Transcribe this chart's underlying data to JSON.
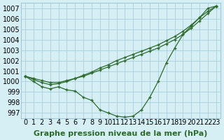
{
  "xlabel": "Graphe pression niveau de la mer (hPa)",
  "x_ticks": [
    0,
    1,
    2,
    3,
    4,
    5,
    6,
    7,
    8,
    9,
    10,
    11,
    12,
    13,
    14,
    15,
    16,
    17,
    18,
    19,
    20,
    21,
    22,
    23
  ],
  "ylim": [
    996.5,
    1007.5
  ],
  "yticks": [
    997,
    998,
    999,
    1000,
    1001,
    1002,
    1003,
    1004,
    1005,
    1006,
    1007
  ],
  "line1": [
    1000.5,
    1000.0,
    999.5,
    999.3,
    999.5,
    999.2,
    999.1,
    998.5,
    998.2,
    997.3,
    997.0,
    996.7,
    996.6,
    996.7,
    997.3,
    998.5,
    1000.0,
    1001.8,
    1003.2,
    1004.5,
    1005.3,
    1006.1,
    1007.0,
    1007.2
  ],
  "line2": [
    1000.5,
    1000.3,
    1000.1,
    999.9,
    999.9,
    1000.1,
    1000.3,
    1000.5,
    1000.8,
    1001.1,
    1001.4,
    1001.7,
    1002.0,
    1002.3,
    1002.6,
    1002.9,
    1003.2,
    1003.6,
    1004.0,
    1004.5,
    1005.1,
    1005.8,
    1006.5,
    1007.2
  ],
  "line3": [
    1000.5,
    1000.2,
    999.9,
    999.7,
    999.8,
    1000.0,
    1000.3,
    1000.6,
    1000.9,
    1001.3,
    1001.6,
    1002.0,
    1002.3,
    1002.6,
    1002.9,
    1003.2,
    1003.5,
    1003.9,
    1004.3,
    1004.8,
    1005.4,
    1006.1,
    1006.7,
    1007.2
  ],
  "line_color": "#2d6a2d",
  "bg_color": "#d6eff5",
  "grid_color": "#a0c8d8",
  "tick_label_fontsize": 7,
  "xlabel_fontsize": 8,
  "marker": "+"
}
